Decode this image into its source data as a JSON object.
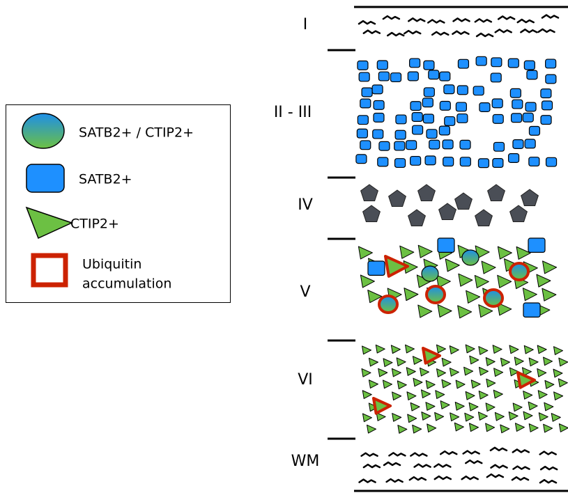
{
  "legend": {
    "items": [
      {
        "label": "SATB2+ / CTIP2+"
      },
      {
        "label": "SATB2+"
      },
      {
        "label": "CTIP2+"
      },
      {
        "label_lines": [
          "Ubiquitin",
          "accumulation"
        ]
      }
    ]
  },
  "layers": [
    {
      "label": "I"
    },
    {
      "label": "II - III"
    },
    {
      "label": "IV"
    },
    {
      "label": "V"
    },
    {
      "label": "VI"
    },
    {
      "label": "WM"
    }
  ]
}
